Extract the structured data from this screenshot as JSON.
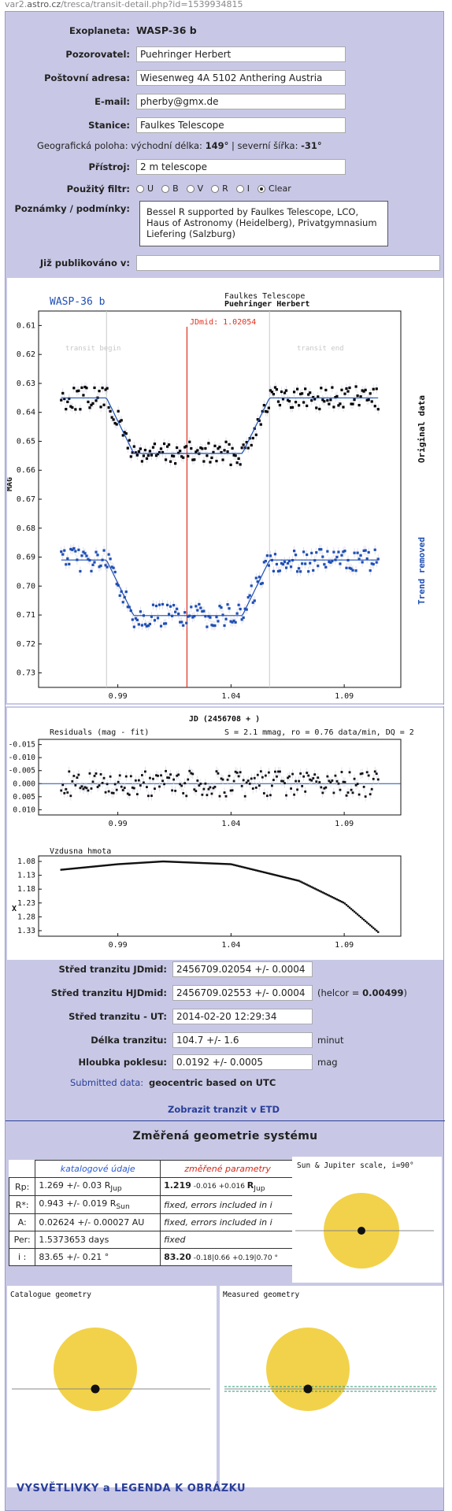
{
  "url": {
    "prefix": "var2.",
    "host": "astro.cz",
    "path": "/tresca/transit-detail.php?id=1539934815"
  },
  "form": {
    "exoplanet_label": "Exoplaneta:",
    "exoplanet_value": "WASP-36 b",
    "observer_label": "Pozorovatel:",
    "observer_value": "Puehringer Herbert",
    "address_label": "Poštovní adresa:",
    "address_value": "Wiesenweg 4A 5102 Anthering Austria",
    "email_label": "E-mail:",
    "email_value": "pherby@gmx.de",
    "station_label": "Stanice:",
    "station_value": "Faulkes Telescope",
    "geo_label": "Geografická poloha:",
    "geo_east_label": "východní délka:",
    "geo_east_value": "149°",
    "geo_sep": "|",
    "geo_north_label": "severní šířka:",
    "geo_north_value": "-31°",
    "instrument_label": "Přístroj:",
    "instrument_value": "2 m telescope",
    "filter_label": "Použitý filtr:",
    "filters": [
      "U",
      "B",
      "V",
      "R",
      "I",
      "Clear"
    ],
    "filter_selected": "Clear",
    "notes_label": "Poznámky / podmínky:",
    "notes_value": "Bessel R supported by Faulkes Telescope, LCO, Haus of Astronomy (Heidelberg), Privatgymnasium Liefering (Salzburg)",
    "published_label": "Již publikováno v:",
    "published_value": ""
  },
  "lightcurve": {
    "title": "WASP-36 b",
    "station": "Faulkes Telescope",
    "observer": "Puehringer Herbert",
    "jdmid_label": "JDmid: 1.02054",
    "transit_begin": "transit begin",
    "transit_end": "transit end",
    "ylabel": "MAG",
    "right_top": "Original data",
    "right_bottom": "Trend removed",
    "xlabel": "JD (2456708 + )",
    "yticks": [
      "0.61",
      "0.62",
      "0.63",
      "0.64",
      "0.65",
      "0.66",
      "0.67",
      "0.68",
      "0.69",
      "0.70",
      "0.71",
      "0.72",
      "0.73"
    ],
    "xticks": [
      "0.99",
      "1.04",
      "1.09"
    ],
    "colors": {
      "original": "#000000",
      "detrended": "#1f4fb4",
      "model": "#1f4fb4",
      "mid": "#e0301e",
      "edges": "#c8c8c8"
    }
  },
  "residuals": {
    "title": "Residuals (mag - fit)",
    "stats": "S = 2.1 mmag, ro = 0.76 data/min, DQ = 2",
    "yticks": [
      "-0.015",
      "-0.010",
      "-0.005",
      "0.000",
      "0.005",
      "0.010"
    ],
    "xticks": [
      "0.99",
      "1.04",
      "1.09"
    ]
  },
  "airmass": {
    "title": "Vzdusna hmota",
    "ylabel": "X",
    "yticks": [
      "1.08",
      "1.13",
      "1.18",
      "1.23",
      "1.28",
      "1.33"
    ],
    "xticks": [
      "0.99",
      "1.04",
      "1.09"
    ]
  },
  "chart_data": [
    {
      "type": "scatter",
      "title": "WASP-36 b",
      "xlabel": "JD (2456708 + )",
      "ylabel": "MAG",
      "xlim": [
        0.955,
        1.115
      ],
      "ylim": [
        0.605,
        0.735
      ],
      "y_inverted": true,
      "jdmid": 1.02054,
      "transit_begin": 0.985,
      "transit_end": 1.057,
      "series": [
        {
          "name": "Original data",
          "baseline": 0.635,
          "depth": 0.0192,
          "x_range": [
            0.965,
            1.105
          ]
        },
        {
          "name": "Trend removed",
          "baseline": 0.691,
          "depth": 0.0192,
          "x_range": [
            0.965,
            1.105
          ]
        }
      ]
    },
    {
      "type": "scatter",
      "title": "Residuals (mag - fit)",
      "xlim": [
        0.955,
        1.115
      ],
      "ylim": [
        -0.017,
        0.012
      ],
      "y_inverted": true,
      "series": [
        {
          "name": "",
          "rms": 0.0021,
          "x_range": [
            0.965,
            1.105
          ]
        }
      ]
    },
    {
      "type": "line",
      "title": "Vzdusna hmota",
      "ylabel": "X",
      "xlim": [
        0.955,
        1.115
      ],
      "ylim": [
        1.06,
        1.35
      ],
      "y_inverted": true,
      "series": [
        {
          "name": "",
          "x": [
            0.965,
            0.99,
            1.01,
            1.04,
            1.07,
            1.09,
            1.105
          ],
          "y": [
            1.11,
            1.09,
            1.08,
            1.09,
            1.15,
            1.23,
            1.335
          ]
        }
      ]
    }
  ],
  "results": {
    "jdmid_label": "Střed tranzitu JDmid:",
    "jdmid_value": "2456709.02054 +/- 0.0004",
    "hjdmid_label": "Střed tranzitu HJDmid:",
    "hjdmid_value": "2456709.02553 +/- 0.0004",
    "helcor_prefix": "(helcor = ",
    "helcor_value": "0.00499",
    "helcor_suffix": ")",
    "ut_label": "Střed tranzitu - UT:",
    "ut_value": "2014-02-20 12:29:34",
    "duration_label": "Délka tranzitu:",
    "duration_value": "104.7 +/- 1.6",
    "duration_unit": "minut",
    "depth_label": "Hloubka poklesu:",
    "depth_value": "0.0192 +/- 0.0005",
    "depth_unit": "mag",
    "submitted_label": "Submitted data:",
    "submitted_value": "geocentric based on UTC",
    "etd_link": "Zobrazit tranzit v ETD"
  },
  "geometry": {
    "title": "Změřená geometrie systému",
    "col_catalog": "katalogové údaje",
    "col_measured": "změřené parametry",
    "rows": [
      {
        "key": "Rp:",
        "catalog": "1.269 +/- 0.03 R",
        "catalog_sub": "Jup",
        "measured_main": "1.219",
        "measured_extra": " -0.016 +0.016 ",
        "measured_unit": "R",
        "measured_sub": "Jup"
      },
      {
        "key": "R*:",
        "catalog": "0.943 +/- 0.019 R",
        "catalog_sub": "Sun",
        "measured_italic": "fixed, errors included in i"
      },
      {
        "key": "A:",
        "catalog": "0.02624 +/- 0.00027 AU",
        "measured_italic": "fixed, errors included in i"
      },
      {
        "key": "Per:",
        "catalog": "1.5373653 days",
        "measured_italic": "fixed"
      },
      {
        "key": "i :",
        "catalog": "83.65 +/- 0.21 °",
        "measured_main": "83.20",
        "measured_extra": " -0.18|0.66 +0.19|0.70 °"
      }
    ],
    "scale_title": "Sun & Jupiter scale, i=90°",
    "catalogue_title": "Catalogue geometry",
    "measured_title": "Measured geometry",
    "legend_link": "VYSVĚTLIVKY a LEGENDA K OBRÁZKU",
    "colors": {
      "star": "#f2d24a",
      "planet": "#111111",
      "link": "#2a3f9a"
    }
  }
}
